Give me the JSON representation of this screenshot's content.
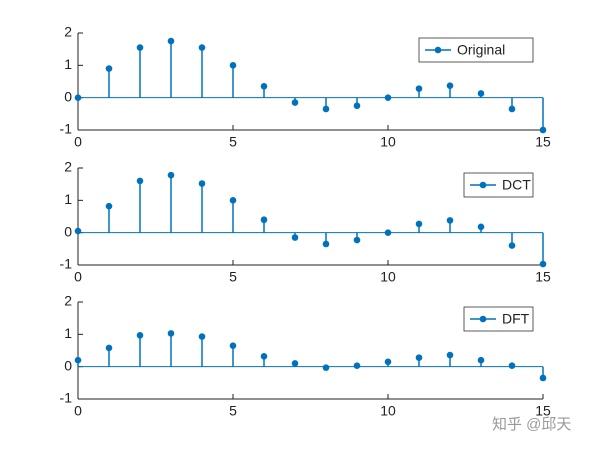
{
  "chart_data": [
    {
      "type": "stem",
      "x": [
        0,
        1,
        2,
        3,
        4,
        5,
        6,
        7,
        8,
        9,
        10,
        11,
        12,
        13,
        14,
        15
      ],
      "series": [
        {
          "name": "Original",
          "color": "#0072bd",
          "values": [
            0,
            0.9,
            1.55,
            1.75,
            1.55,
            1.0,
            0.35,
            -0.15,
            -0.35,
            -0.25,
            0,
            0.28,
            0.37,
            0.13,
            -0.35,
            -1.0
          ]
        }
      ],
      "xlim": [
        0,
        15
      ],
      "ylim": [
        -1,
        2
      ],
      "xticks": [
        0,
        5,
        10,
        15
      ],
      "yticks": [
        -1,
        0,
        1,
        2
      ],
      "legend": "upper right"
    },
    {
      "type": "stem",
      "x": [
        0,
        1,
        2,
        3,
        4,
        5,
        6,
        7,
        8,
        9,
        10,
        11,
        12,
        13,
        14,
        15
      ],
      "series": [
        {
          "name": "DCT",
          "color": "#0072bd",
          "values": [
            0.05,
            0.82,
            1.6,
            1.78,
            1.52,
            1.0,
            0.4,
            -0.15,
            -0.35,
            -0.23,
            0,
            0.27,
            0.38,
            0.18,
            -0.4,
            -0.97
          ]
        }
      ],
      "xlim": [
        0,
        15
      ],
      "ylim": [
        -1,
        2
      ],
      "xticks": [
        0,
        5,
        10,
        15
      ],
      "yticks": [
        -1,
        0,
        1,
        2
      ],
      "legend": "upper right"
    },
    {
      "type": "stem",
      "x": [
        0,
        1,
        2,
        3,
        4,
        5,
        6,
        7,
        8,
        9,
        10,
        11,
        12,
        13,
        14,
        15
      ],
      "series": [
        {
          "name": "DFT",
          "color": "#0072bd",
          "values": [
            0.2,
            0.58,
            0.97,
            1.03,
            0.93,
            0.65,
            0.32,
            0.1,
            -0.03,
            0.03,
            0.15,
            0.28,
            0.36,
            0.2,
            0.03,
            -0.35
          ]
        }
      ],
      "xlim": [
        0,
        15
      ],
      "ylim": [
        -1,
        2
      ],
      "xticks": [
        0,
        5,
        10,
        15
      ],
      "yticks": [
        -1,
        0,
        1,
        2
      ],
      "legend": "upper right"
    }
  ],
  "watermark": "知乎 @邱天"
}
